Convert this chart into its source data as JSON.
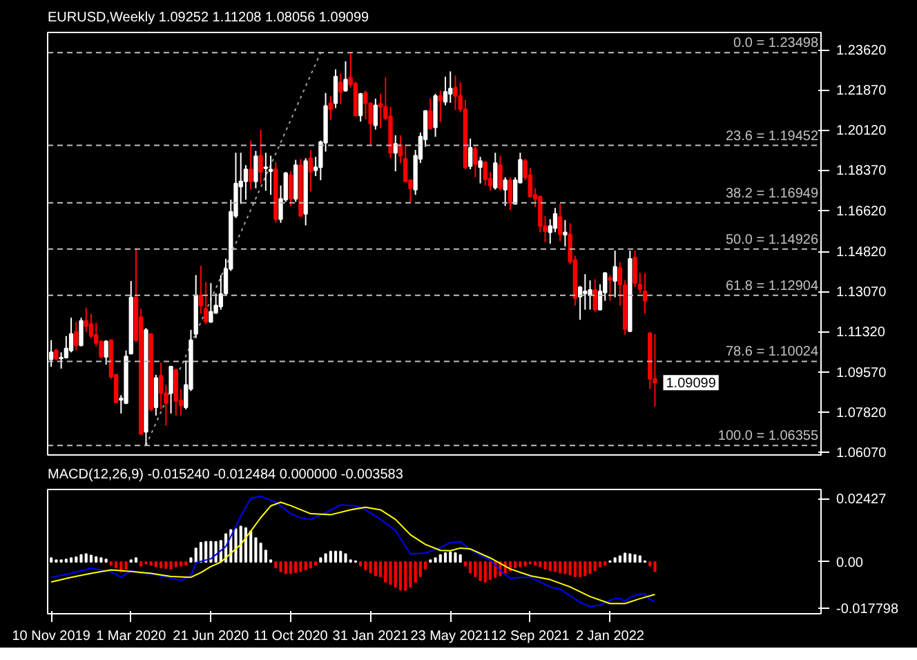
{
  "chart_data": [
    {
      "type": "candlestick",
      "title": "EURUSD,Weekly  1.09252 1.11208 1.08056 1.09099",
      "x": [
        "2019-11-10",
        "2019-11-17",
        "2019-11-24",
        "2019-12-01",
        "2019-12-08",
        "2019-12-15",
        "2019-12-22",
        "2019-12-29",
        "2020-01-05",
        "2020-01-12",
        "2020-01-19",
        "2020-01-26",
        "2020-02-02",
        "2020-02-09",
        "2020-02-16",
        "2020-02-23",
        "2020-03-01",
        "2020-03-08",
        "2020-03-15",
        "2020-03-22",
        "2020-03-29",
        "2020-04-05",
        "2020-04-12",
        "2020-04-19",
        "2020-04-26",
        "2020-05-03",
        "2020-05-10",
        "2020-05-17",
        "2020-05-24",
        "2020-05-31",
        "2020-06-07",
        "2020-06-14",
        "2020-06-21",
        "2020-06-28",
        "2020-07-05",
        "2020-07-12",
        "2020-07-19",
        "2020-07-26",
        "2020-08-02",
        "2020-08-09",
        "2020-08-16",
        "2020-08-23",
        "2020-08-30",
        "2020-09-06",
        "2020-09-13",
        "2020-09-20",
        "2020-09-27",
        "2020-10-04",
        "2020-10-11",
        "2020-10-18",
        "2020-10-25",
        "2020-11-01",
        "2020-11-08",
        "2020-11-15",
        "2020-11-22",
        "2020-11-29",
        "2020-12-06",
        "2020-12-13",
        "2020-12-20",
        "2020-12-27",
        "2021-01-03",
        "2021-01-10",
        "2021-01-17",
        "2021-01-24",
        "2021-01-31",
        "2021-02-07",
        "2021-02-14",
        "2021-02-21",
        "2021-02-28",
        "2021-03-07",
        "2021-03-14",
        "2021-03-21",
        "2021-03-28",
        "2021-04-04",
        "2021-04-11",
        "2021-04-18",
        "2021-04-25",
        "2021-05-02",
        "2021-05-09",
        "2021-05-16",
        "2021-05-23",
        "2021-05-30",
        "2021-06-06",
        "2021-06-13",
        "2021-06-20",
        "2021-06-27",
        "2021-07-04",
        "2021-07-11",
        "2021-07-18",
        "2021-07-25",
        "2021-08-01",
        "2021-08-08",
        "2021-08-15",
        "2021-08-22",
        "2021-08-29",
        "2021-09-05",
        "2021-09-12",
        "2021-09-19",
        "2021-09-26",
        "2021-10-03",
        "2021-10-10",
        "2021-10-17",
        "2021-10-24",
        "2021-10-31",
        "2021-11-07",
        "2021-11-14",
        "2021-11-21",
        "2021-11-28",
        "2021-12-05",
        "2021-12-12",
        "2021-12-19",
        "2021-12-26",
        "2022-01-02",
        "2022-01-09",
        "2022-01-16",
        "2022-01-23",
        "2022-01-30",
        "2022-02-06",
        "2022-02-13",
        "2022-02-20",
        "2022-02-27",
        "2022-03-06"
      ],
      "ohlc": [
        [
          1.1011,
          1.1095,
          1.0979,
          1.1042
        ],
        [
          1.105,
          1.1059,
          1.1006,
          1.1015
        ],
        [
          1.1015,
          1.1042,
          1.0971,
          1.1019
        ],
        [
          1.1019,
          1.1113,
          1.1015,
          1.1059
        ],
        [
          1.105,
          1.1193,
          1.1042,
          1.1122
        ],
        [
          1.1131,
          1.1175,
          1.105,
          1.1072
        ],
        [
          1.1072,
          1.1193,
          1.1068,
          1.1179
        ],
        [
          1.1179,
          1.1237,
          1.1131,
          1.1157
        ],
        [
          1.1166,
          1.121,
          1.1104,
          1.1113
        ],
        [
          1.1118,
          1.1171,
          1.1068,
          1.1082
        ],
        [
          1.109,
          1.1095,
          1.1015,
          1.1022
        ],
        [
          1.1022,
          1.1095,
          1.0988,
          1.109
        ],
        [
          1.1095,
          1.1098,
          1.0926,
          1.0935
        ],
        [
          1.0944,
          1.0948,
          1.082,
          1.0823
        ],
        [
          1.0834,
          1.0855,
          1.0775,
          1.0841
        ],
        [
          1.082,
          1.105,
          1.0816,
          1.1024
        ],
        [
          1.1036,
          1.1353,
          1.1033,
          1.1282
        ],
        [
          1.1282,
          1.1495,
          1.1086,
          1.1095
        ],
        [
          1.1196,
          1.1232,
          1.0681,
          1.0686
        ],
        [
          1.0695,
          1.1148,
          1.0636,
          1.1139
        ],
        [
          1.1122,
          1.1125,
          1.0784,
          1.0793
        ],
        [
          1.0802,
          1.0944,
          1.0766,
          1.093
        ],
        [
          1.094,
          1.0997,
          1.0793,
          1.0864
        ],
        [
          1.0864,
          1.09,
          1.0722,
          1.082
        ],
        [
          1.0864,
          1.0983,
          1.0775,
          1.098
        ],
        [
          1.0965,
          1.0971,
          1.0766,
          1.0829
        ],
        [
          1.0832,
          1.0882,
          1.0766,
          1.0811
        ],
        [
          1.0802,
          1.1006,
          1.0793,
          1.09
        ],
        [
          1.0882,
          1.114,
          1.0873,
          1.1095
        ],
        [
          1.1122,
          1.1379,
          1.1104,
          1.1291
        ],
        [
          1.1291,
          1.142,
          1.121,
          1.1246
        ],
        [
          1.1232,
          1.1349,
          1.1166,
          1.1175
        ],
        [
          1.1175,
          1.1344,
          1.1171,
          1.1219
        ],
        [
          1.1214,
          1.1299,
          1.121,
          1.1246
        ],
        [
          1.1242,
          1.1379,
          1.1228,
          1.1296
        ],
        [
          1.1299,
          1.145,
          1.1291,
          1.1406
        ],
        [
          1.1406,
          1.1708,
          1.1397,
          1.1655
        ],
        [
          1.1637,
          1.1913,
          1.1628,
          1.1779
        ],
        [
          1.1765,
          1.1913,
          1.169,
          1.1788
        ],
        [
          1.1788,
          1.1859,
          1.1708,
          1.1841
        ],
        [
          1.1841,
          1.1966,
          1.1752,
          1.1788
        ],
        [
          1.1788,
          1.1921,
          1.1758,
          1.1898
        ],
        [
          1.19,
          1.2014,
          1.1779,
          1.1829
        ],
        [
          1.1845,
          1.1913,
          1.1747,
          1.185
        ],
        [
          1.1832,
          1.19,
          1.1729,
          1.184
        ],
        [
          1.1841,
          1.1872,
          1.1609,
          1.1623
        ],
        [
          1.1623,
          1.177,
          1.1607,
          1.1712
        ],
        [
          1.1708,
          1.1829,
          1.1699,
          1.1824
        ],
        [
          1.1815,
          1.1832,
          1.1681,
          1.1712
        ],
        [
          1.1712,
          1.1882,
          1.1699,
          1.1859
        ],
        [
          1.1859,
          1.1886,
          1.1633,
          1.1637
        ],
        [
          1.1646,
          1.1889,
          1.1596,
          1.1877
        ],
        [
          1.1889,
          1.1925,
          1.1744,
          1.1829
        ],
        [
          1.1836,
          1.1895,
          1.1811,
          1.185
        ],
        [
          1.185,
          1.1966,
          1.1793,
          1.196
        ],
        [
          1.1957,
          1.2174,
          1.1918,
          1.2117
        ],
        [
          1.2129,
          1.2161,
          1.2055,
          1.2103
        ],
        [
          1.2129,
          1.2277,
          1.2108,
          1.2245
        ],
        [
          1.222,
          1.2259,
          1.2126,
          1.2179
        ],
        [
          1.2184,
          1.2312,
          1.2179,
          1.2232
        ],
        [
          1.2241,
          1.235,
          1.2197,
          1.2211
        ],
        [
          1.2215,
          1.2223,
          1.2072,
          1.2076
        ],
        [
          1.2076,
          1.2174,
          1.2049,
          1.217
        ],
        [
          1.2174,
          1.2184,
          1.206,
          1.2129
        ],
        [
          1.2129,
          1.2132,
          1.1948,
          1.204
        ],
        [
          1.2033,
          1.2149,
          1.2014,
          1.212
        ],
        [
          1.2126,
          1.217,
          1.2019,
          1.2113
        ],
        [
          1.2113,
          1.2241,
          1.2055,
          1.2064
        ],
        [
          1.2072,
          1.2113,
          1.1889,
          1.1912
        ],
        [
          1.1912,
          1.1989,
          1.1832,
          1.1952
        ],
        [
          1.1948,
          1.1989,
          1.1868,
          1.19
        ],
        [
          1.1886,
          1.1948,
          1.1783,
          1.1788
        ],
        [
          1.1793,
          1.1797,
          1.1697,
          1.1758
        ],
        [
          1.1752,
          1.1925,
          1.1729,
          1.19
        ],
        [
          1.1886,
          1.2001,
          1.1868,
          1.1984
        ],
        [
          1.1971,
          1.2099,
          1.1939,
          1.2095
        ],
        [
          1.2095,
          1.2152,
          1.2014,
          1.2019
        ],
        [
          1.2024,
          1.217,
          1.1983,
          1.2161
        ],
        [
          1.2161,
          1.2184,
          1.2046,
          1.214
        ],
        [
          1.2135,
          1.2245,
          1.212,
          1.2179
        ],
        [
          1.217,
          1.2268,
          1.2131,
          1.2193
        ],
        [
          1.2197,
          1.225,
          1.2099,
          1.2161
        ],
        [
          1.2161,
          1.222,
          1.209,
          1.2103
        ],
        [
          1.2103,
          1.2143,
          1.1841,
          1.185
        ],
        [
          1.1854,
          1.1975,
          1.1841,
          1.1935
        ],
        [
          1.193,
          1.1943,
          1.1806,
          1.1863
        ],
        [
          1.185,
          1.1895,
          1.1779,
          1.1877
        ],
        [
          1.1871,
          1.1877,
          1.177,
          1.1797
        ],
        [
          1.18,
          1.1829,
          1.1747,
          1.177
        ],
        [
          1.1761,
          1.1913,
          1.1752,
          1.1868
        ],
        [
          1.1859,
          1.19,
          1.1747,
          1.1758
        ],
        [
          1.1752,
          1.1806,
          1.1681,
          1.1793
        ],
        [
          1.1793,
          1.1806,
          1.1664,
          1.1694
        ],
        [
          1.169,
          1.1806,
          1.1687,
          1.1793
        ],
        [
          1.1783,
          1.1913,
          1.1779,
          1.1882
        ],
        [
          1.1877,
          1.1886,
          1.1793,
          1.1806
        ],
        [
          1.1815,
          1.1847,
          1.1717,
          1.1722
        ],
        [
          1.1729,
          1.1758,
          1.1676,
          1.1712
        ],
        [
          1.1722,
          1.1726,
          1.1566,
          1.1593
        ],
        [
          1.1593,
          1.1637,
          1.1522,
          1.157
        ],
        [
          1.1566,
          1.1623,
          1.1516,
          1.1593
        ],
        [
          1.1584,
          1.1672,
          1.1566,
          1.1646
        ],
        [
          1.1633,
          1.169,
          1.1527,
          1.1557
        ],
        [
          1.1555,
          1.1619,
          1.1504,
          1.1566
        ],
        [
          1.1557,
          1.1605,
          1.1427,
          1.1438
        ],
        [
          1.1445,
          1.1463,
          1.1246,
          1.1278
        ],
        [
          1.1285,
          1.1331,
          1.1184,
          1.1326
        ],
        [
          1.1299,
          1.1383,
          1.1228,
          1.1308
        ],
        [
          1.1291,
          1.1356,
          1.1228,
          1.1314
        ],
        [
          1.1314,
          1.1361,
          1.1219,
          1.1228
        ],
        [
          1.1228,
          1.1339,
          1.1225,
          1.1308
        ],
        [
          1.1303,
          1.1392,
          1.1267,
          1.1388
        ],
        [
          1.1367,
          1.1379,
          1.1267,
          1.1358
        ],
        [
          1.1353,
          1.1486,
          1.1282,
          1.1415
        ],
        [
          1.141,
          1.1436,
          1.1246,
          1.1338
        ],
        [
          1.1335,
          1.1356,
          1.1118,
          1.1143
        ],
        [
          1.1134,
          1.1486,
          1.1131,
          1.145
        ],
        [
          1.1456,
          1.1486,
          1.1326,
          1.1344
        ],
        [
          1.1338,
          1.1388,
          1.1299,
          1.1317
        ],
        [
          1.1308,
          1.1388,
          1.121,
          1.1267
        ],
        [
          1.1125,
          1.1131,
          1.0882,
          1.0926
        ],
        [
          1.09252,
          1.11208,
          1.08056,
          1.09099
        ]
      ],
      "xlim": [
        "2019-11-05",
        "2022-10-25"
      ],
      "ylim": [
        1.0594,
        1.2438
      ],
      "yticks": [
        {
          "value": 1.2362,
          "label": "1.23620"
        },
        {
          "value": 1.2187,
          "label": "1.21870"
        },
        {
          "value": 1.2012,
          "label": "1.20120"
        },
        {
          "value": 1.1837,
          "label": "1.18370"
        },
        {
          "value": 1.1662,
          "label": "1.16620"
        },
        {
          "value": 1.1482,
          "label": "1.14820"
        },
        {
          "value": 1.1307,
          "label": "1.13070"
        },
        {
          "value": 1.1132,
          "label": "1.11320"
        },
        {
          "value": 1.0957,
          "label": "1.09570"
        },
        {
          "value": 1.0782,
          "label": "1.07820"
        },
        {
          "value": 1.0607,
          "label": "1.06070"
        }
      ],
      "tick_labels": "y",
      "ref_lines": [
        {
          "axis": "y",
          "value": 1.23498,
          "label": "0.0 = 1.23498",
          "color": "#c0c0c0",
          "line_style": "dashed"
        },
        {
          "axis": "y",
          "value": 1.19452,
          "label": "23.6 = 1.19452",
          "color": "#c0c0c0",
          "line_style": "dashed"
        },
        {
          "axis": "y",
          "value": 1.16949,
          "label": "38.2 = 1.16949",
          "color": "#c0c0c0",
          "line_style": "dashed"
        },
        {
          "axis": "y",
          "value": 1.14926,
          "label": "50.0 = 1.14926",
          "color": "#c0c0c0",
          "line_style": "dashed"
        },
        {
          "axis": "y",
          "value": 1.12904,
          "label": "61.8 = 1.12904",
          "color": "#c0c0c0",
          "line_style": "dashed"
        },
        {
          "axis": "y",
          "value": 1.10024,
          "label": "78.6 = 1.10024",
          "color": "#c0c0c0",
          "line_style": "dashed"
        },
        {
          "axis": "y",
          "value": 1.06355,
          "label": "100.0 = 1.06355",
          "color": "#c0c0c0",
          "line_style": "dashed"
        }
      ],
      "series": [
        {
          "type": "line",
          "x": [
            "2020-03-22",
            "2020-11-22"
          ],
          "values": [
            1.06355,
            1.23498
          ],
          "color": "#a0a0a0",
          "line_style": "dotted"
        }
      ],
      "annotations": [
        {
          "text": "1.09099",
          "x": "2022-03-06",
          "y": 1.09099
        }
      ]
    },
    {
      "type": "bar",
      "title": "MACD(12,26,9) -0.015240 -0.012484 0.000000 -0.003583",
      "x": [
        "2019-11-10",
        "2019-11-17",
        "2019-11-24",
        "2019-12-01",
        "2019-12-08",
        "2019-12-15",
        "2019-12-22",
        "2019-12-29",
        "2020-01-05",
        "2020-01-12",
        "2020-01-19",
        "2020-01-26",
        "2020-02-02",
        "2020-02-09",
        "2020-02-16",
        "2020-02-23",
        "2020-03-01",
        "2020-03-08",
        "2020-03-15",
        "2020-03-22",
        "2020-03-29",
        "2020-04-05",
        "2020-04-12",
        "2020-04-19",
        "2020-04-26",
        "2020-05-03",
        "2020-05-10",
        "2020-05-17",
        "2020-05-24",
        "2020-05-31",
        "2020-06-07",
        "2020-06-14",
        "2020-06-21",
        "2020-06-28",
        "2020-07-05",
        "2020-07-12",
        "2020-07-19",
        "2020-07-26",
        "2020-08-02",
        "2020-08-09",
        "2020-08-16",
        "2020-08-23",
        "2020-08-30",
        "2020-09-06",
        "2020-09-13",
        "2020-09-20",
        "2020-09-27",
        "2020-10-04",
        "2020-10-11",
        "2020-10-18",
        "2020-10-25",
        "2020-11-01",
        "2020-11-08",
        "2020-11-15",
        "2020-11-22",
        "2020-11-29",
        "2020-12-06",
        "2020-12-13",
        "2020-12-20",
        "2020-12-27",
        "2021-01-03",
        "2021-01-10",
        "2021-01-17",
        "2021-01-24",
        "2021-01-31",
        "2021-02-07",
        "2021-02-14",
        "2021-02-21",
        "2021-02-28",
        "2021-03-07",
        "2021-03-14",
        "2021-03-21",
        "2021-03-28",
        "2021-04-04",
        "2021-04-11",
        "2021-04-18",
        "2021-04-25",
        "2021-05-02",
        "2021-05-09",
        "2021-05-16",
        "2021-05-23",
        "2021-05-30",
        "2021-06-06",
        "2021-06-13",
        "2021-06-20",
        "2021-06-27",
        "2021-07-04",
        "2021-07-11",
        "2021-07-18",
        "2021-07-25",
        "2021-08-01",
        "2021-08-08",
        "2021-08-15",
        "2021-08-22",
        "2021-08-29",
        "2021-09-05",
        "2021-09-12",
        "2021-09-19",
        "2021-09-26",
        "2021-10-03",
        "2021-10-10",
        "2021-10-17",
        "2021-10-24",
        "2021-10-31",
        "2021-11-07",
        "2021-11-14",
        "2021-11-21",
        "2021-11-28",
        "2021-12-05",
        "2021-12-12",
        "2021-12-19",
        "2021-12-26",
        "2022-01-02",
        "2022-01-09",
        "2022-01-16",
        "2022-01-23",
        "2022-01-30",
        "2022-02-06",
        "2022-02-13",
        "2022-02-20",
        "2022-02-27",
        "2022-03-06"
      ],
      "xlim": [
        "2019-11-05",
        "2022-10-25"
      ],
      "xticks": [
        {
          "value": "2019-11-10",
          "label": "10 Nov 2019"
        },
        {
          "value": "2020-03-01",
          "label": "1 Mar 2020"
        },
        {
          "value": "2020-06-21",
          "label": "21 Jun 2020"
        },
        {
          "value": "2020-10-11",
          "label": "11 Oct 2020"
        },
        {
          "value": "2021-01-31",
          "label": "31 Jan 2021"
        },
        {
          "value": "2021-05-23",
          "label": "23 May 2021"
        },
        {
          "value": "2021-09-12",
          "label": "12 Sep 2021"
        },
        {
          "value": "2022-01-02",
          "label": "2 Jan 2022"
        }
      ],
      "ylim": [
        -0.0199,
        0.0278
      ],
      "yticks": [
        {
          "value": 0.02427,
          "label": "0.02427"
        },
        {
          "value": 0,
          "label": "0.00"
        },
        {
          "value": -0.017798,
          "label": "-0.017798"
        }
      ],
      "series": [
        {
          "type": "bar",
          "values": [
            0.0015,
            0.0007,
            0.0007,
            0.001,
            0.0015,
            0.0018,
            0.0027,
            0.003,
            0.0025,
            0.0019,
            0.0015,
            0.001,
            -0.0012,
            -0.0022,
            -0.0037,
            -0.0027,
            0.0007,
            0.0015,
            -0.0015,
            -0.0007,
            -0.0012,
            -0.0018,
            -0.0022,
            -0.0024,
            -0.0027,
            -0.0018,
            -0.0015,
            -0.0012,
            0.0015,
            0.0052,
            0.0074,
            0.0077,
            0.0078,
            0.0077,
            0.0081,
            0.0107,
            0.0123,
            0.0126,
            0.0136,
            0.013,
            0.0118,
            0.0092,
            0.0071,
            0.0044,
            0.0007,
            -0.0022,
            -0.0037,
            -0.0044,
            -0.0044,
            -0.004,
            -0.0037,
            -0.003,
            -0.0022,
            -0.0012,
            0.0015,
            0.003,
            0.004,
            0.004,
            0.004,
            0.003,
            0.0007,
            0.0003,
            -0.0015,
            -0.003,
            -0.0041,
            -0.0052,
            -0.0056,
            -0.0077,
            -0.0086,
            -0.0096,
            -0.0107,
            -0.0108,
            -0.0096,
            -0.0077,
            -0.0056,
            -0.0027,
            0.0007,
            0.0015,
            0.0027,
            0.0034,
            0.0037,
            0.0034,
            0.0027,
            -0.0015,
            -0.0041,
            -0.0056,
            -0.0071,
            -0.0077,
            -0.0067,
            -0.0059,
            -0.0052,
            -0.0041,
            -0.0033,
            -0.0022,
            -0.0018,
            -0.0015,
            -0.0007,
            -0.0012,
            -0.0018,
            -0.0027,
            -0.0033,
            -0.0037,
            -0.0041,
            -0.0044,
            -0.0049,
            -0.0056,
            -0.0056,
            -0.0052,
            -0.0044,
            -0.0033,
            -0.0018,
            -0.0012,
            0.0003,
            0.0015,
            0.0022,
            0.0033,
            0.003,
            0.0027,
            0.0022,
            0.0003,
            -0.0015,
            -0.003583
          ],
          "colors": [
            "#ffffff",
            "#ffffff",
            "#ffffff",
            "#ffffff",
            "#ffffff",
            "#ffffff",
            "#ffffff",
            "#ffffff",
            "#ffffff",
            "#ffffff",
            "#ffffff",
            "#ffffff",
            "#ff0000",
            "#ff0000",
            "#ff0000",
            "#ff0000",
            "#ffffff",
            "#ffffff",
            "#ff0000",
            "#ff0000",
            "#ff0000",
            "#ff0000",
            "#ff0000",
            "#ff0000",
            "#ff0000",
            "#ff0000",
            "#ff0000",
            "#ff0000",
            "#ffffff",
            "#ffffff",
            "#ffffff",
            "#ffffff",
            "#ffffff",
            "#ffffff",
            "#ffffff",
            "#ffffff",
            "#ffffff",
            "#ffffff",
            "#ffffff",
            "#ffffff",
            "#ffffff",
            "#ffffff",
            "#ffffff",
            "#ffffff",
            "#ffffff",
            "#ff0000",
            "#ff0000",
            "#ff0000",
            "#ff0000",
            "#ff0000",
            "#ff0000",
            "#ff0000",
            "#ff0000",
            "#ff0000",
            "#ffffff",
            "#ffffff",
            "#ffffff",
            "#ffffff",
            "#ffffff",
            "#ffffff",
            "#ffffff",
            "#ffffff",
            "#ff0000",
            "#ff0000",
            "#ff0000",
            "#ff0000",
            "#ff0000",
            "#ff0000",
            "#ff0000",
            "#ff0000",
            "#ff0000",
            "#ff0000",
            "#ff0000",
            "#ff0000",
            "#ff0000",
            "#ff0000",
            "#ffffff",
            "#ffffff",
            "#ffffff",
            "#ffffff",
            "#ffffff",
            "#ffffff",
            "#ffffff",
            "#ff0000",
            "#ff0000",
            "#ff0000",
            "#ff0000",
            "#ff0000",
            "#ff0000",
            "#ff0000",
            "#ff0000",
            "#ff0000",
            "#ff0000",
            "#ff0000",
            "#ff0000",
            "#ff0000",
            "#ff0000",
            "#ff0000",
            "#ff0000",
            "#ff0000",
            "#ff0000",
            "#ff0000",
            "#ff0000",
            "#ff0000",
            "#ff0000",
            "#ff0000",
            "#ff0000",
            "#ff0000",
            "#ff0000",
            "#ff0000",
            "#ff0000",
            "#ff0000",
            "#ffffff",
            "#ffffff",
            "#ffffff",
            "#ffffff",
            "#ffffff",
            "#ffffff",
            "#ffffff",
            "#ffffff",
            "#ff0000",
            "#ff0000"
          ]
        },
        {
          "type": "line",
          "color": "#0000ff",
          "x": [
            "2019-11-10",
            "2019-12-08",
            "2020-01-05",
            "2020-02-02",
            "2020-02-16",
            "2020-03-01",
            "2020-03-15",
            "2020-03-29",
            "2020-04-26",
            "2020-05-10",
            "2020-05-24",
            "2020-05-31",
            "2020-06-21",
            "2020-07-12",
            "2020-08-02",
            "2020-08-16",
            "2020-08-30",
            "2020-09-20",
            "2020-10-11",
            "2020-10-25",
            "2020-11-08",
            "2020-11-29",
            "2020-12-20",
            "2021-01-10",
            "2021-01-24",
            "2021-02-14",
            "2021-03-07",
            "2021-03-28",
            "2021-04-18",
            "2021-05-09",
            "2021-05-23",
            "2021-06-06",
            "2021-06-20",
            "2021-07-04",
            "2021-07-18",
            "2021-08-01",
            "2021-08-15",
            "2021-08-29",
            "2021-09-12",
            "2021-09-26",
            "2021-10-10",
            "2021-10-24",
            "2021-11-07",
            "2021-11-21",
            "2021-12-05",
            "2021-12-19",
            "2022-01-02",
            "2022-01-09",
            "2022-01-16",
            "2022-01-23",
            "2022-01-30",
            "2022-02-13",
            "2022-02-20",
            "2022-02-27",
            "2022-03-06"
          ],
          "values": [
            -0.0059,
            -0.0044,
            -0.0024,
            -0.0038,
            -0.0059,
            -0.0033,
            -0.0044,
            -0.0046,
            -0.0062,
            -0.0071,
            -0.0052,
            -0.0003,
            0.0012,
            0.0059,
            0.0175,
            0.0244,
            0.0252,
            0.0229,
            0.0185,
            0.0169,
            0.0163,
            0.0189,
            0.0219,
            0.0215,
            0.02,
            0.0163,
            0.0121,
            0.003,
            0.0034,
            0.0055,
            0.0074,
            0.0077,
            0.0047,
            0.0025,
            0.0007,
            -0.0033,
            -0.0064,
            -0.0059,
            -0.0059,
            -0.0077,
            -0.0096,
            -0.0105,
            -0.013,
            -0.0155,
            -0.0172,
            -0.0166,
            -0.0148,
            -0.0141,
            -0.0141,
            -0.0151,
            -0.0136,
            -0.0123,
            -0.0123,
            -0.0144,
            -0.01524
          ]
        },
        {
          "type": "line",
          "color": "#ffff00",
          "x": [
            "2019-11-10",
            "2019-12-08",
            "2020-01-05",
            "2020-02-02",
            "2020-03-01",
            "2020-03-29",
            "2020-04-26",
            "2020-05-24",
            "2020-06-07",
            "2020-06-21",
            "2020-07-05",
            "2020-07-19",
            "2020-08-02",
            "2020-08-16",
            "2020-08-30",
            "2020-09-13",
            "2020-09-27",
            "2020-10-11",
            "2020-11-08",
            "2020-12-06",
            "2021-01-03",
            "2021-01-24",
            "2021-02-14",
            "2021-03-07",
            "2021-03-28",
            "2021-04-18",
            "2021-05-09",
            "2021-05-23",
            "2021-06-06",
            "2021-06-20",
            "2021-07-18",
            "2021-08-15",
            "2021-09-12",
            "2021-10-10",
            "2021-11-07",
            "2021-12-05",
            "2022-01-02",
            "2022-01-23",
            "2022-02-13",
            "2022-03-06"
          ],
          "values": [
            -0.0077,
            -0.0059,
            -0.0044,
            -0.0031,
            -0.0037,
            -0.0044,
            -0.0056,
            -0.0059,
            -0.0041,
            -0.0018,
            -0.0001,
            0.0033,
            0.0067,
            0.0118,
            0.017,
            0.0215,
            0.0229,
            0.0216,
            0.0185,
            0.0181,
            0.02,
            0.021,
            0.02,
            0.0163,
            0.0104,
            0.0067,
            0.0044,
            0.0043,
            0.0053,
            0.005,
            0.0015,
            -0.0027,
            -0.0053,
            -0.0068,
            -0.0096,
            -0.0133,
            -0.016,
            -0.016,
            -0.0141,
            -0.012484
          ]
        }
      ]
    }
  ]
}
